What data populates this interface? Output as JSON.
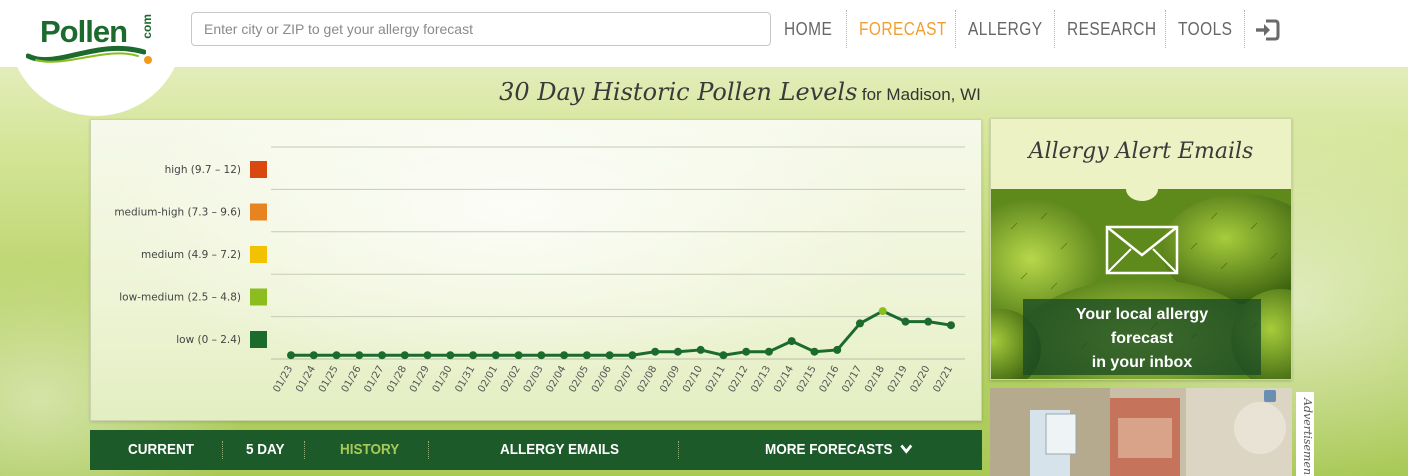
{
  "site": {
    "logo_text": "Pollen",
    "logo_suffix": "com"
  },
  "search": {
    "placeholder": "Enter city or ZIP to get your allergy forecast"
  },
  "nav": {
    "items": [
      {
        "label": "HOME",
        "active": false
      },
      {
        "label": "FORECAST",
        "active": true
      },
      {
        "label": "ALLERGY",
        "active": false
      },
      {
        "label": "RESEARCH",
        "active": false
      },
      {
        "label": "TOOLS",
        "active": false
      }
    ],
    "login_icon": "sign-in-icon"
  },
  "page": {
    "title": "30 Day Historic Pollen Levels",
    "location": "for Madison, WI"
  },
  "chart_data": {
    "type": "line",
    "title": "",
    "xlabel": "",
    "ylabel": "",
    "ylim": [
      0,
      12
    ],
    "grid": true,
    "legend": [
      {
        "label": "high (9.7 – 12)",
        "color": "#d9480f"
      },
      {
        "label": "medium-high (7.3 – 9.6)",
        "color": "#e8841f"
      },
      {
        "label": "medium (4.9 – 7.2)",
        "color": "#f2c200"
      },
      {
        "label": "low-medium (2.5 – 4.8)",
        "color": "#8bbd1f"
      },
      {
        "label": "low (0 – 2.4)",
        "color": "#1b6b2c"
      }
    ],
    "x": [
      "01/23",
      "01/24",
      "01/25",
      "01/26",
      "01/27",
      "01/28",
      "01/29",
      "01/30",
      "01/31",
      "02/01",
      "02/02",
      "02/03",
      "02/04",
      "02/05",
      "02/06",
      "02/07",
      "02/08",
      "02/09",
      "02/10",
      "02/11",
      "02/12",
      "02/13",
      "02/14",
      "02/15",
      "02/16",
      "02/17",
      "02/18",
      "02/19",
      "02/20",
      "02/21"
    ],
    "series": [
      {
        "values": [
          0.1,
          0.1,
          0.1,
          0.1,
          0.1,
          0.1,
          0.1,
          0.1,
          0.1,
          0.1,
          0.1,
          0.1,
          0.1,
          0.1,
          0.1,
          0.1,
          0.3,
          0.3,
          0.4,
          0.1,
          0.3,
          0.3,
          0.9,
          0.3,
          0.4,
          1.9,
          2.6,
          2.0,
          2.0,
          1.8
        ],
        "line_color": "#1b6b2c"
      }
    ]
  },
  "subnav": {
    "items": [
      {
        "label": "CURRENT",
        "active": false
      },
      {
        "label": "5 DAY",
        "active": false
      },
      {
        "label": "HISTORY",
        "active": true
      },
      {
        "label": "ALLERGY EMAILS",
        "active": false
      },
      {
        "label": "MORE FORECASTS",
        "active": false
      }
    ]
  },
  "alert_card": {
    "title": "Allergy Alert Emails",
    "line1": "Your local allergy",
    "line2": "forecast",
    "line3": "in your inbox",
    "icon": "envelope-icon"
  },
  "ad": {
    "label": "Advertisement"
  }
}
